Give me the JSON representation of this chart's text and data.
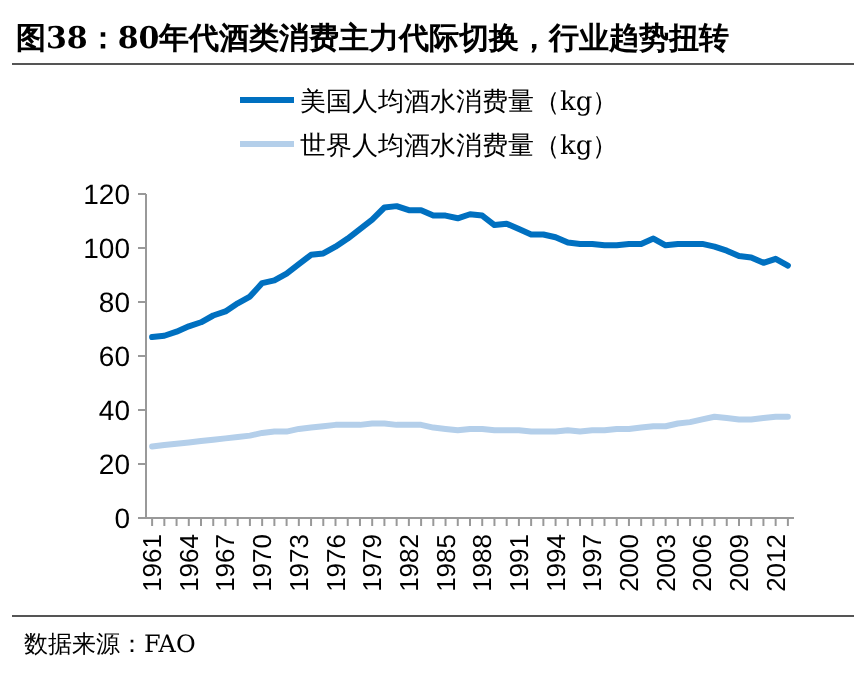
{
  "chart_data": {
    "type": "line",
    "title": "图38：80年代酒类消费主力代际切换，行业趋势扭转",
    "annotations": [
      "数据来源：FAO"
    ],
    "x": [
      1961,
      1962,
      1963,
      1964,
      1965,
      1966,
      1967,
      1968,
      1969,
      1970,
      1971,
      1972,
      1973,
      1974,
      1975,
      1976,
      1977,
      1978,
      1979,
      1980,
      1981,
      1982,
      1983,
      1984,
      1985,
      1986,
      1987,
      1988,
      1989,
      1990,
      1991,
      1992,
      1993,
      1994,
      1995,
      1996,
      1997,
      1998,
      1999,
      2000,
      2001,
      2002,
      2003,
      2004,
      2005,
      2006,
      2007,
      2008,
      2009,
      2010,
      2011,
      2012,
      2013
    ],
    "series": [
      {
        "name": "美国人均酒水消费量（kg）",
        "color": "#0070c0",
        "values": [
          67,
          67.5,
          69,
          71,
          72.5,
          75,
          76.5,
          79.5,
          82,
          87,
          88,
          90.5,
          94,
          97.5,
          98,
          100.5,
          103.5,
          107,
          110.5,
          115,
          115.5,
          114,
          114,
          112,
          112,
          111,
          112.5,
          112,
          108.5,
          109,
          107,
          105,
          105,
          104,
          102,
          101.5,
          101.5,
          101,
          101,
          101.5,
          101.5,
          103.5,
          101,
          101.5,
          101.5,
          101.5,
          100.5,
          99,
          97,
          96.5,
          94.5,
          96,
          93.5
        ]
      },
      {
        "name": "世界人均酒水消费量（kg）",
        "color": "#b4cfea",
        "values": [
          26.5,
          27,
          27.5,
          28,
          28.5,
          29,
          29.5,
          30,
          30.5,
          31.5,
          32,
          32,
          33,
          33.5,
          34,
          34.5,
          34.5,
          34.5,
          35,
          35,
          34.5,
          34.5,
          34.5,
          33.5,
          33,
          32.5,
          33,
          33,
          32.5,
          32.5,
          32.5,
          32,
          32,
          32,
          32.5,
          32,
          32.5,
          32.5,
          33,
          33,
          33.5,
          34,
          34,
          35,
          35.5,
          36.5,
          37.5,
          37,
          36.5,
          36.5,
          37,
          37.5,
          37.5
        ]
      }
    ],
    "xlim": [
      1960.5,
      2013.5
    ],
    "xticks": [
      1961,
      {
        "value": 1962,
        "label": null
      },
      {
        "value": 1963,
        "label": null
      },
      1964,
      {
        "value": 1965,
        "label": null
      },
      {
        "value": 1966,
        "label": null
      },
      1967,
      {
        "value": 1968,
        "label": null
      },
      {
        "value": 1969,
        "label": null
      },
      1970,
      {
        "value": 1971,
        "label": null
      },
      {
        "value": 1972,
        "label": null
      },
      1973,
      {
        "value": 1974,
        "label": null
      },
      {
        "value": 1975,
        "label": null
      },
      1976,
      {
        "value": 1977,
        "label": null
      },
      {
        "value": 1978,
        "label": null
      },
      1979,
      {
        "value": 1980,
        "label": null
      },
      {
        "value": 1981,
        "label": null
      },
      1982,
      {
        "value": 1983,
        "label": null
      },
      {
        "value": 1984,
        "label": null
      },
      1985,
      {
        "value": 1986,
        "label": null
      },
      {
        "value": 1987,
        "label": null
      },
      1988,
      {
        "value": 1989,
        "label": null
      },
      {
        "value": 1990,
        "label": null
      },
      1991,
      {
        "value": 1992,
        "label": null
      },
      {
        "value": 1993,
        "label": null
      },
      1994,
      {
        "value": 1995,
        "label": null
      },
      {
        "value": 1996,
        "label": null
      },
      1997,
      {
        "value": 1998,
        "label": null
      },
      {
        "value": 1999,
        "label": null
      },
      2000,
      {
        "value": 2001,
        "label": null
      },
      {
        "value": 2002,
        "label": null
      },
      2003,
      {
        "value": 2004,
        "label": null
      },
      {
        "value": 2005,
        "label": null
      },
      2006,
      {
        "value": 2007,
        "label": null
      },
      {
        "value": 2008,
        "label": null
      },
      2009,
      {
        "value": 2010,
        "label": null
      },
      {
        "value": 2011,
        "label": null
      },
      2012,
      {
        "value": 2013,
        "label": null
      }
    ],
    "ylim": [
      0,
      120
    ],
    "yticks": [
      0,
      20,
      40,
      60,
      80,
      100,
      120
    ],
    "grid": false,
    "legend": "top",
    "marker": "none",
    "line_style": "solid"
  }
}
